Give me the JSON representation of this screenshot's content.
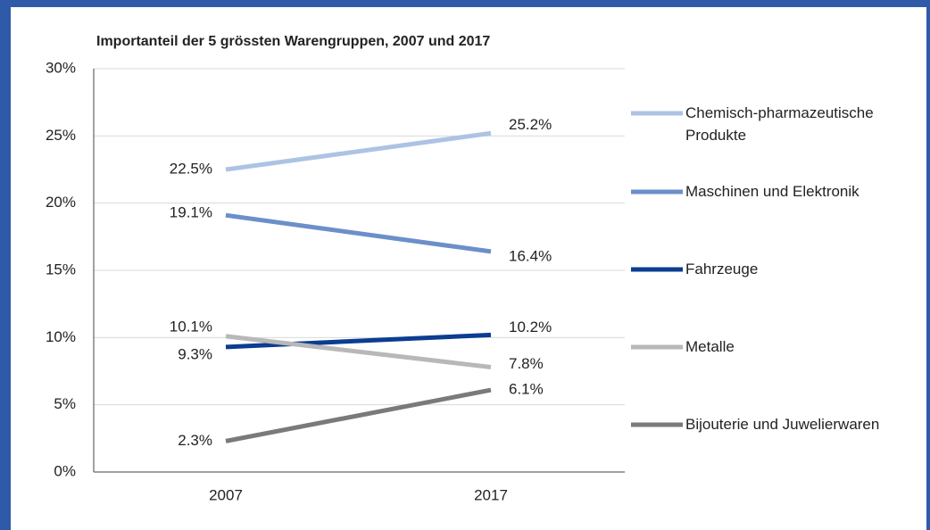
{
  "chart_data": {
    "type": "line",
    "title": "Importanteil der 5 grössten Warengruppen, 2007 und 2017",
    "categories": [
      "2007",
      "2017"
    ],
    "series": [
      {
        "name": "Chemisch-pharmazeutische Produkte",
        "color": "#adc3e3",
        "values": [
          22.5,
          25.2
        ],
        "value_labels": [
          "22.5%",
          "25.2%"
        ]
      },
      {
        "name": "Maschinen und Elektronik",
        "color": "#6b8fc9",
        "values": [
          19.1,
          16.4
        ],
        "value_labels": [
          "19.1%",
          "16.4%"
        ]
      },
      {
        "name": "Fahrzeuge",
        "color": "#0b3d91",
        "values": [
          9.3,
          10.2
        ],
        "value_labels": [
          "9.3%",
          "10.2%"
        ]
      },
      {
        "name": "Metalle",
        "color": "#b8b8b8",
        "values": [
          10.1,
          7.8
        ],
        "value_labels": [
          "10.1%",
          "7.8%"
        ]
      },
      {
        "name": "Bijouterie und Juwelierwaren",
        "color": "#7a7a7a",
        "values": [
          2.3,
          6.1
        ],
        "value_labels": [
          "2.3%",
          "6.1%"
        ]
      }
    ],
    "ylim": [
      0,
      30
    ],
    "yticks": [
      {
        "value": 0,
        "label": "0%"
      },
      {
        "value": 5,
        "label": "5%"
      },
      {
        "value": 10,
        "label": "10%"
      },
      {
        "value": 15,
        "label": "15%"
      },
      {
        "value": 20,
        "label": "20%"
      },
      {
        "value": 25,
        "label": "25%"
      },
      {
        "value": 30,
        "label": "30%"
      }
    ],
    "grid": true,
    "legend": "right"
  }
}
